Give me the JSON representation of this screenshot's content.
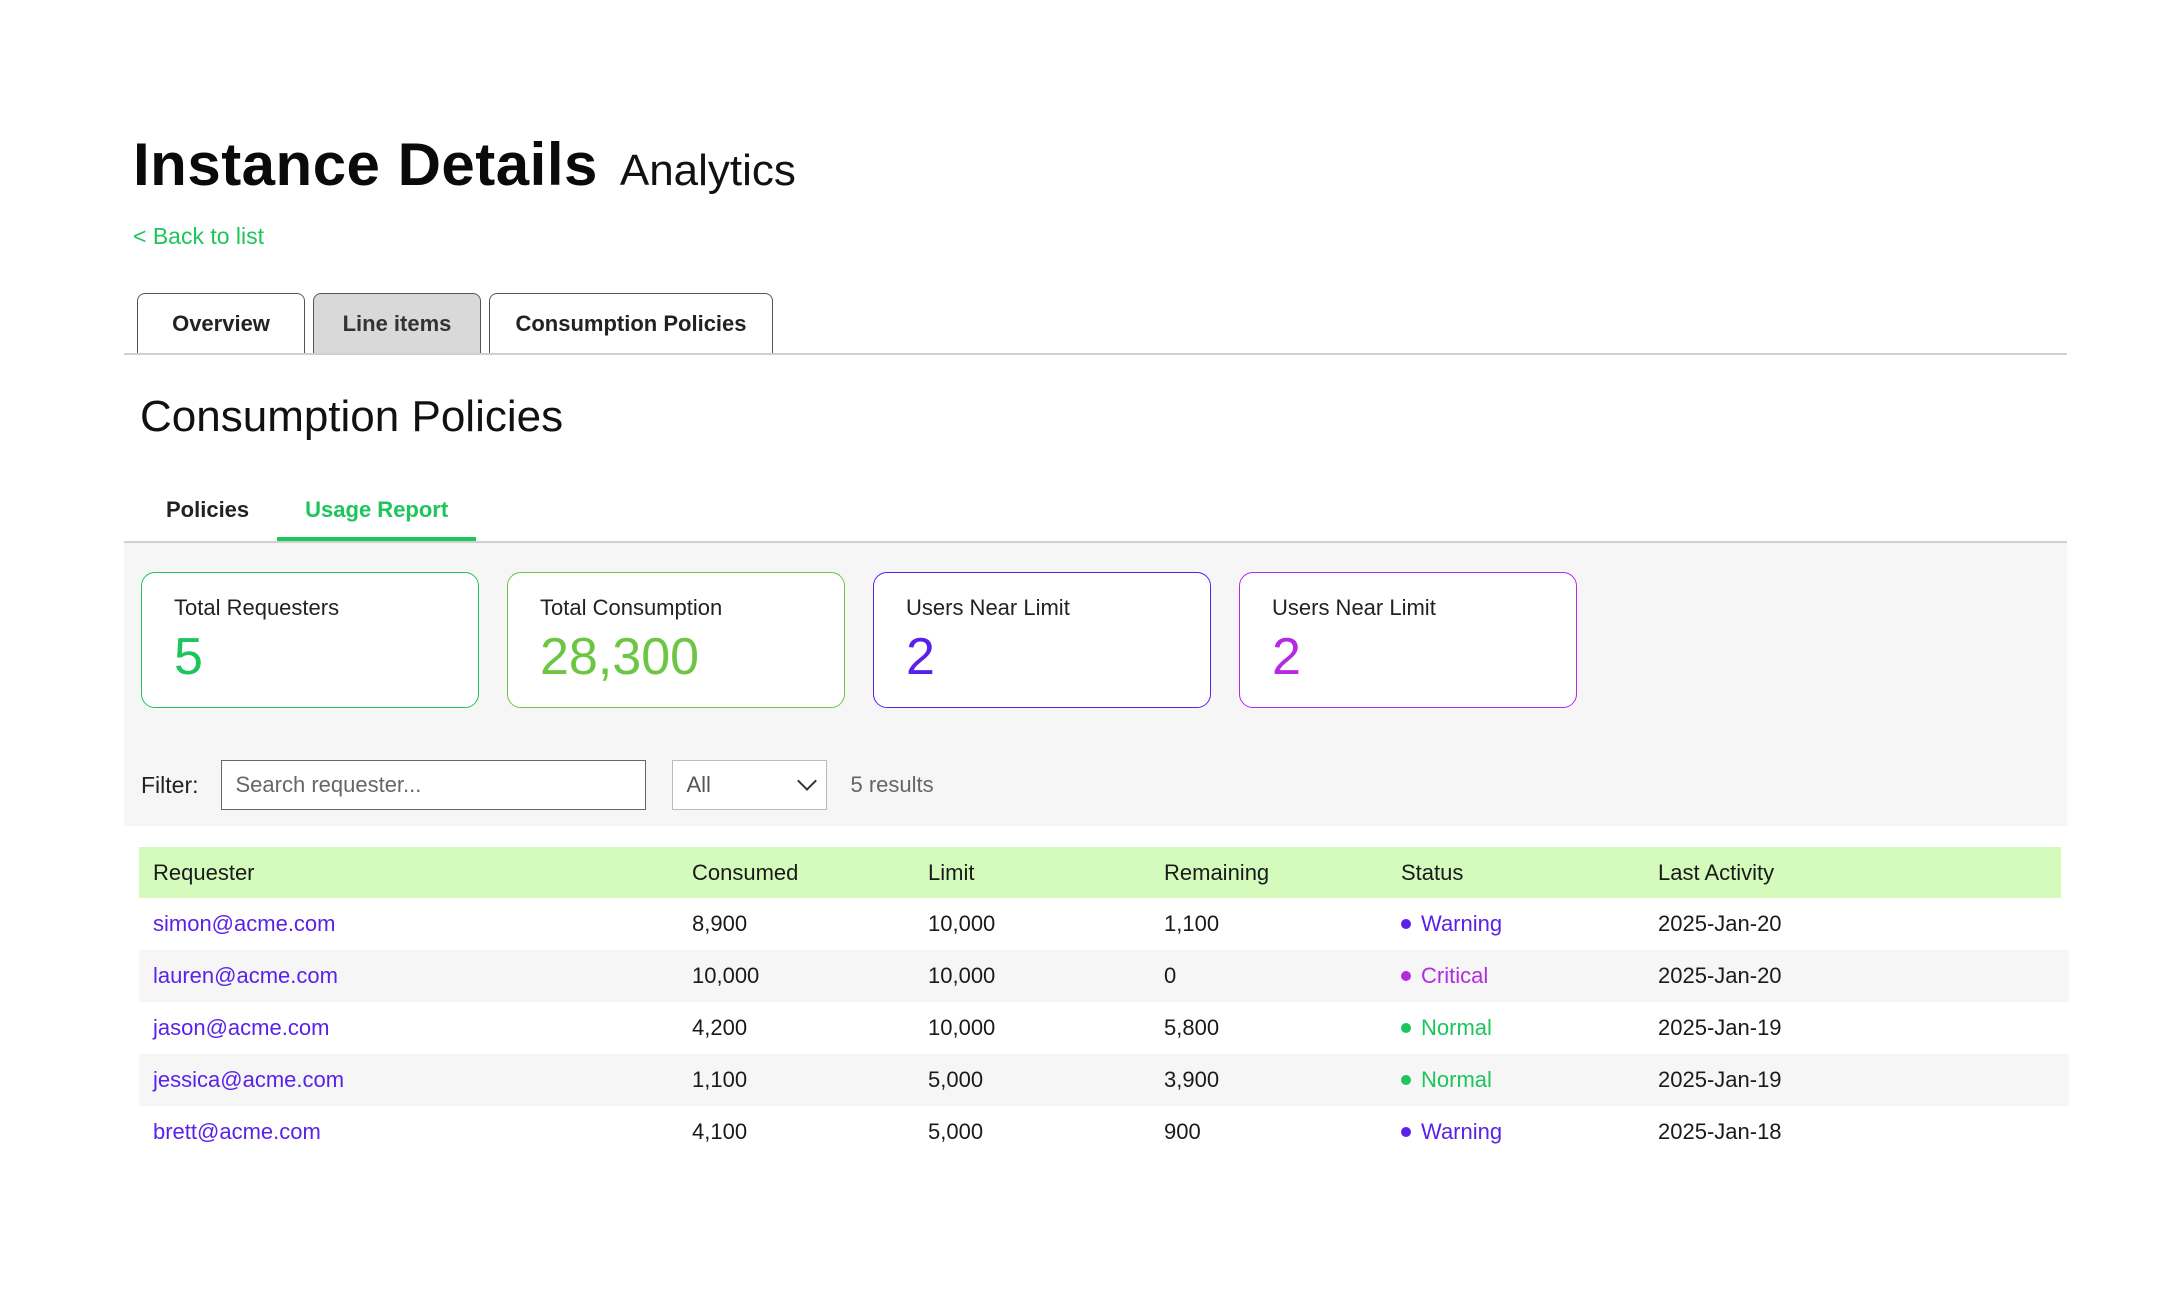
{
  "header": {
    "title": "Instance Details",
    "subtitle": "Analytics",
    "back_label": "< Back to list"
  },
  "tabs": [
    {
      "label": "Overview"
    },
    {
      "label": "Line items"
    },
    {
      "label": "Consumption Policies"
    }
  ],
  "section": {
    "title": "Consumption Policies"
  },
  "subtabs": [
    {
      "label": "Policies",
      "active": false
    },
    {
      "label": "Usage Report",
      "active": true
    }
  ],
  "cards": [
    {
      "label": "Total Requesters",
      "value": "5",
      "color": "#1ec45c"
    },
    {
      "label": "Total Consumption",
      "value": "28,300",
      "color": "#6cc644"
    },
    {
      "label": "Users Near Limit",
      "value": "2",
      "color": "#5a22e8"
    },
    {
      "label": "Users Near Limit",
      "value": "2",
      "color": "#b42ae0"
    }
  ],
  "filter": {
    "label": "Filter:",
    "search_placeholder": "Search requester...",
    "select_value": "All",
    "results": "5 results"
  },
  "table": {
    "columns": [
      "Requester",
      "Consumed",
      "Limit",
      "Remaining",
      "Status",
      "Last Activity"
    ],
    "rows": [
      {
        "requester": "simon@acme.com",
        "consumed": "8,900",
        "limit": "10,000",
        "remaining": "1,100",
        "status": "Warning",
        "status_color": "#5a22e8",
        "last_activity": "2025-Jan-20"
      },
      {
        "requester": "lauren@acme.com",
        "consumed": "10,000",
        "limit": "10,000",
        "remaining": "0",
        "status": "Critical",
        "status_color": "#b42ae0",
        "last_activity": "2025-Jan-20"
      },
      {
        "requester": "jason@acme.com",
        "consumed": "4,200",
        "limit": "10,000",
        "remaining": "5,800",
        "status": "Normal",
        "status_color": "#1ec45c",
        "last_activity": "2025-Jan-19"
      },
      {
        "requester": "jessica@acme.com",
        "consumed": "1,100",
        "limit": "5,000",
        "remaining": "3,900",
        "status": "Normal",
        "status_color": "#1ec45c",
        "last_activity": "2025-Jan-19"
      },
      {
        "requester": "brett@acme.com",
        "consumed": "4,100",
        "limit": "5,000",
        "remaining": "900",
        "status": "Warning",
        "status_color": "#5a22e8",
        "last_activity": "2025-Jan-18"
      }
    ]
  }
}
